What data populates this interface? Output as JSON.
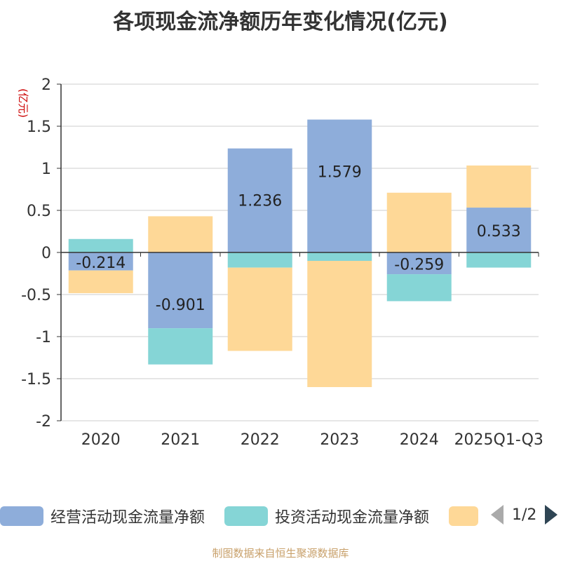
{
  "title": "各项现金流净额历年变化情况(亿元)",
  "footer": "制图数据来自恒生聚源数据库",
  "legend": {
    "items": [
      {
        "label": "经营活动现金流量净额",
        "color": "#8eadda"
      },
      {
        "label": "投资活动现金流量净额",
        "color": "#85d5d6"
      },
      {
        "label": "",
        "color": "#fed897"
      }
    ],
    "page": "1/2"
  },
  "chart_data": {
    "type": "bar",
    "stacked": true,
    "title": "各项现金流净额历年变化情况(亿元)",
    "ylabel": "(亿元)",
    "ylabel_color": "#cc0000",
    "ylim": [
      -2,
      2
    ],
    "yticks": [
      2,
      1.5,
      1,
      0.5,
      0,
      -0.5,
      -1,
      -1.5,
      -2
    ],
    "ytick_labels": [
      "2",
      "1.5",
      "1",
      "0.5",
      "0",
      "-0.5",
      "-1",
      "-1.5",
      "-2"
    ],
    "categories": [
      "2020",
      "2021",
      "2022",
      "2023",
      "2024",
      "2025Q1-Q3"
    ],
    "series": [
      {
        "name": "经营活动现金流量净额",
        "color": "#8eadda",
        "values": [
          -0.214,
          -0.901,
          1.236,
          1.579,
          -0.259,
          0.533
        ],
        "labels": [
          "-0.214",
          "-0.901",
          "1.236",
          "1.579",
          "-0.259",
          "0.533"
        ]
      },
      {
        "name": "投资活动现金流量净额",
        "color": "#85d5d6",
        "values": [
          0.16,
          -0.43,
          -0.18,
          -0.1,
          -0.32,
          -0.18
        ]
      },
      {
        "name": "",
        "color": "#fed897",
        "values": [
          -0.27,
          0.43,
          -0.99,
          -1.5,
          0.71,
          0.5
        ]
      }
    ]
  }
}
